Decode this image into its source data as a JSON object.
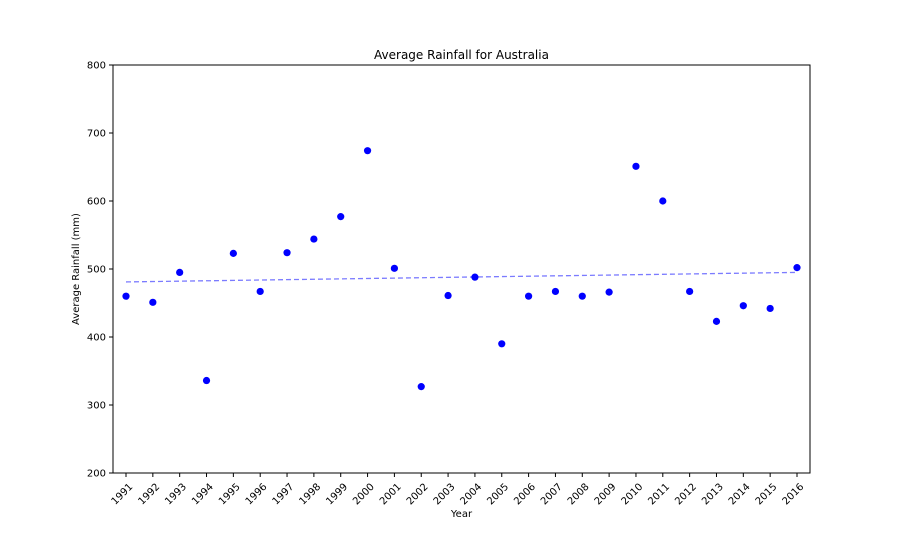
{
  "chart_data": {
    "type": "scatter",
    "title": "Average Rainfall for Australia",
    "xlabel": "Year",
    "ylabel": "Average Rainfall (mm)",
    "ylim": [
      200,
      800
    ],
    "yticks": [
      "200",
      "300",
      "400",
      "500",
      "600",
      "700",
      "800"
    ],
    "x": [
      "1991",
      "1992",
      "1993",
      "1994",
      "1995",
      "1996",
      "1997",
      "1998",
      "1999",
      "2000",
      "2001",
      "2002",
      "2003",
      "2004",
      "2005",
      "2006",
      "2007",
      "2008",
      "2009",
      "2010",
      "2011",
      "2012",
      "2013",
      "2014",
      "2015",
      "2016"
    ],
    "series": [
      {
        "values": [
          460,
          451,
          495,
          336,
          523,
          467,
          524,
          544,
          577,
          674,
          501,
          327,
          461,
          488,
          390,
          460,
          467,
          460,
          466,
          651,
          600,
          467,
          423,
          446,
          442,
          502
        ],
        "color": "#0000ff",
        "marker": "circle"
      }
    ],
    "trendline": {
      "start": [
        1991,
        481
      ],
      "end": [
        2016,
        495
      ],
      "color": "#7b7bff",
      "style": "dashed"
    },
    "grid": false,
    "legend": "none"
  }
}
